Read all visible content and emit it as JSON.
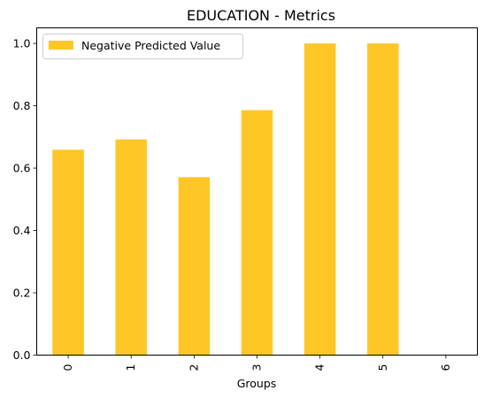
{
  "chart_data": {
    "type": "bar",
    "title": "EDUCATION - Metrics",
    "xlabel": "Groups",
    "ylabel": "",
    "categories": [
      "0",
      "1",
      "2",
      "3",
      "4",
      "5",
      "6"
    ],
    "series": [
      {
        "name": "Negative Predicted Value",
        "values": [
          0.659,
          0.692,
          0.571,
          0.786,
          1.0,
          1.0,
          0.0
        ],
        "color": "#FFC726"
      }
    ],
    "ylim": [
      0,
      1.05
    ],
    "yticks": [
      "0.0",
      "0.2",
      "0.4",
      "0.6",
      "0.8",
      "1.0"
    ],
    "grid": false,
    "legend_position": "top-left"
  }
}
